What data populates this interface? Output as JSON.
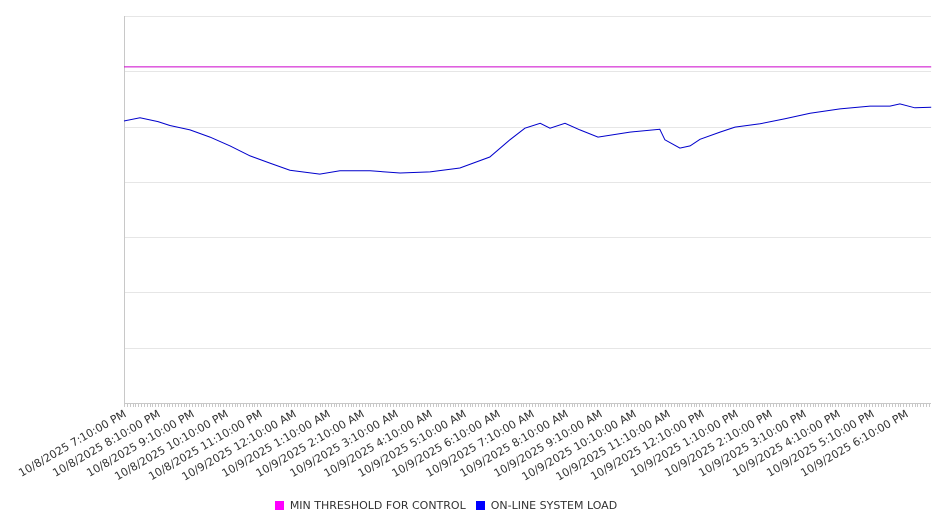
{
  "chart_data": {
    "type": "line",
    "title": "",
    "xlabel": "",
    "ylabel": "",
    "x_unit": "hours since 10/8/2025 7:10:00 PM",
    "xlim": [
      0,
      23.74
    ],
    "ylim": [
      0,
      7
    ],
    "y_gridlines": 7,
    "grid": true,
    "legend_placement": "bottom-center",
    "tick_labels": [
      "10/8/2025 7:10:00 PM",
      "10/8/2025 8:10:00 PM",
      "10/8/2025 9:10:00 PM",
      "10/8/2025 10:10:00 PM",
      "10/8/2025 11:10:00 PM",
      "10/9/2025 12:10:00 AM",
      "10/9/2025 1:10:00 AM",
      "10/9/2025 2:10:00 AM",
      "10/9/2025 3:10:00 AM",
      "10/9/2025 4:10:00 AM",
      "10/9/2025 5:10:00 AM",
      "10/9/2025 6:10:00 AM",
      "10/9/2025 7:10:00 AM",
      "10/9/2025 8:10:00 AM",
      "10/9/2025 9:10:00 AM",
      "10/9/2025 10:10:00 AM",
      "10/9/2025 11:10:00 AM",
      "10/9/2025 12:10:00 PM",
      "10/9/2025 1:10:00 PM",
      "10/9/2025 2:10:00 PM",
      "10/9/2025 3:10:00 PM",
      "10/9/2025 4:10:00 PM",
      "10/9/2025 5:10:00 PM",
      "10/9/2025 6:10:00 PM"
    ],
    "series": [
      {
        "name": "MIN THRESHOLD FOR CONTROL",
        "color": "#cc00cc",
        "legend_color": "#ff00ff",
        "x": [
          0,
          23.74
        ],
        "values": [
          6.08,
          6.08
        ]
      },
      {
        "name": "ON-LINE SYSTEM LOAD",
        "color": "#0000cc",
        "legend_color": "#0000ff",
        "x": [
          0,
          0.47,
          1.0,
          1.35,
          1.94,
          2.53,
          3.12,
          3.71,
          4.29,
          4.88,
          5.76,
          6.35,
          7.24,
          8.12,
          9.0,
          9.88,
          10.76,
          11.35,
          11.79,
          12.24,
          12.53,
          12.97,
          13.41,
          13.94,
          14.88,
          15.76,
          15.91,
          16.35,
          16.65,
          16.94,
          17.53,
          17.97,
          18.71,
          19.44,
          20.18,
          21.06,
          21.94,
          22.53,
          22.82,
          23.26,
          23.74
        ],
        "values": [
          5.1,
          5.16,
          5.09,
          5.02,
          4.94,
          4.81,
          4.65,
          4.47,
          4.34,
          4.21,
          4.14,
          4.2,
          4.2,
          4.16,
          4.18,
          4.25,
          4.45,
          4.76,
          4.97,
          5.06,
          4.97,
          5.06,
          4.94,
          4.81,
          4.9,
          4.95,
          4.76,
          4.61,
          4.65,
          4.77,
          4.9,
          4.99,
          5.05,
          5.14,
          5.24,
          5.32,
          5.37,
          5.37,
          5.41,
          5.34,
          5.35
        ]
      }
    ]
  }
}
